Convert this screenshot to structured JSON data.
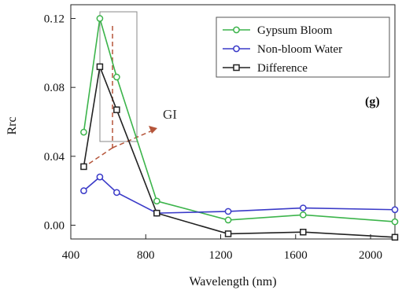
{
  "chart_data": {
    "type": "line",
    "xlabel": "Wavelength (nm)",
    "ylabel": "Rrc",
    "xlim": [
      400,
      2130
    ],
    "ylim": [
      -0.008,
      0.128
    ],
    "xticks": [
      400,
      800,
      1200,
      1600,
      2000
    ],
    "yticks": [
      0.0,
      0.04,
      0.08,
      0.12
    ],
    "xtick_labels": [
      "400",
      "800",
      "1200",
      "1600",
      "2000"
    ],
    "ytick_labels": [
      "0.00",
      "0.04",
      "0.08",
      "0.12"
    ],
    "panel_label": "(g)",
    "annotation": "GI",
    "legend_position": "top-right",
    "grid": false,
    "series": [
      {
        "name": "Gypsum Bloom",
        "color": "#3cb44b",
        "marker": "circle",
        "x": [
          469,
          555,
          645,
          859,
          1240,
          1640,
          2130
        ],
        "y": [
          0.054,
          0.12,
          0.086,
          0.014,
          0.003,
          0.006,
          0.002
        ]
      },
      {
        "name": "Non-bloom Water",
        "color": "#3a3ac8",
        "marker": "circle",
        "x": [
          469,
          555,
          645,
          859,
          1240,
          1640,
          2130
        ],
        "y": [
          0.02,
          0.028,
          0.019,
          0.007,
          0.008,
          0.01,
          0.009
        ]
      },
      {
        "name": "Difference",
        "color": "#222222",
        "marker": "square",
        "x": [
          469,
          555,
          645,
          859,
          1240,
          1640,
          2130
        ],
        "y": [
          0.034,
          0.092,
          0.067,
          0.007,
          -0.005,
          -0.004,
          -0.007
        ]
      }
    ]
  }
}
